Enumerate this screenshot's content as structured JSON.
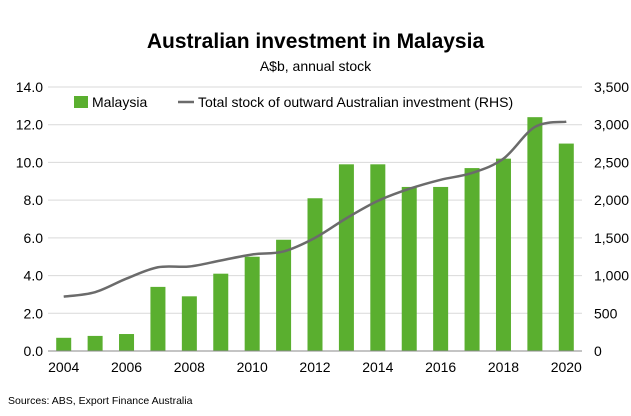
{
  "chart_data": {
    "type": "bar",
    "title": "Australian investment in Malaysia",
    "subtitle": "A$b, annual stock",
    "source": "Sources: ABS, Export Finance Australia",
    "x": [
      2004,
      2005,
      2006,
      2007,
      2008,
      2009,
      2010,
      2011,
      2012,
      2013,
      2014,
      2015,
      2016,
      2017,
      2018,
      2019,
      2020
    ],
    "x_tick_labels": [
      "2004",
      "2006",
      "2008",
      "2010",
      "2012",
      "2014",
      "2016",
      "2018",
      "2020"
    ],
    "series": [
      {
        "name": "Malaysia",
        "type": "bar",
        "axis": "left",
        "color": "#5aaf2f",
        "values": [
          0.7,
          0.8,
          0.9,
          3.4,
          2.9,
          4.1,
          5.0,
          5.9,
          8.1,
          9.9,
          9.9,
          8.7,
          8.7,
          9.7,
          10.2,
          12.4,
          11.0
        ]
      },
      {
        "name": "Total stock of outward Australian investment (RHS)",
        "type": "line",
        "axis": "right",
        "color": "#6b6b6b",
        "values": [
          720,
          780,
          960,
          1110,
          1120,
          1200,
          1280,
          1320,
          1500,
          1760,
          1990,
          2150,
          2270,
          2360,
          2550,
          2970,
          3040
        ]
      }
    ],
    "y_left": {
      "ylim": [
        0,
        14
      ],
      "tick_labels": [
        "0.0",
        "2.0",
        "4.0",
        "6.0",
        "8.0",
        "10.0",
        "12.0",
        "14.0"
      ]
    },
    "y_right": {
      "ylim": [
        0,
        3500
      ],
      "tick_labels": [
        "0",
        "500",
        "1,000",
        "1,500",
        "2,000",
        "2,500",
        "3,000",
        "3,500"
      ]
    },
    "grid": true,
    "legend_placement": "top-left"
  }
}
